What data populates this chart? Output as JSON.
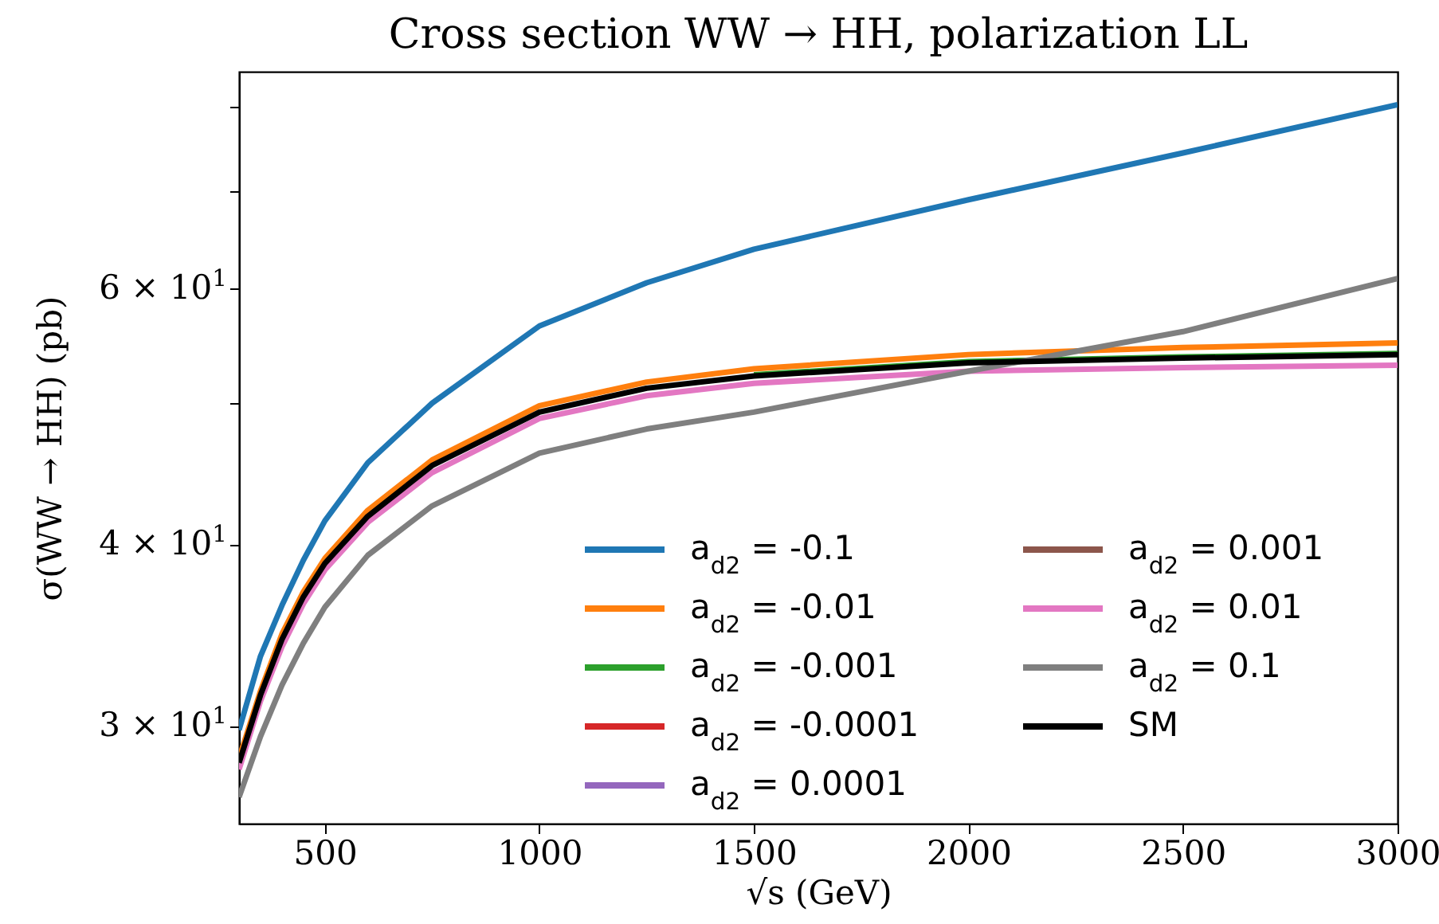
{
  "chart_data": {
    "type": "line",
    "title": "Cross section WW → HH, polarization LL",
    "xlabel": "√s (GeV)",
    "ylabel": "σ(WW → HH) (pb)",
    "x": [
      300,
      350,
      400,
      450,
      500,
      600,
      750,
      1000,
      1250,
      1500,
      2000,
      2500,
      3000
    ],
    "series": [
      {
        "name": "a$_{d2}$ = -0.1",
        "color": "#1f77b4",
        "values": [
          29.8,
          33.5,
          36.3,
          39.0,
          41.5,
          45.5,
          50.0,
          56.5,
          60.5,
          63.8,
          69.0,
          74.3,
          80.2
        ]
      },
      {
        "name": "a$_{d2}$ = -0.01",
        "color": "#ff7f0e",
        "values": [
          28.5,
          31.7,
          34.7,
          37.1,
          39.1,
          42.2,
          45.7,
          49.8,
          51.7,
          52.8,
          54.0,
          54.6,
          55.0
        ]
      },
      {
        "name": "a$_{d2}$ = -0.001",
        "color": "#2ca02c",
        "values": [
          null,
          null,
          null,
          null,
          null,
          null,
          null,
          null,
          null,
          52.3,
          53.4,
          53.8,
          54.1
        ]
      },
      {
        "name": "a$_{d2}$ = -0.0001",
        "color": "#d62728",
        "values": [
          null,
          null,
          null,
          null,
          null,
          null,
          null,
          null,
          null,
          null,
          null,
          null,
          null
        ]
      },
      {
        "name": "a$_{d2}$ = 0.0001",
        "color": "#9467bd",
        "values": [
          null,
          null,
          null,
          null,
          null,
          null,
          null,
          null,
          null,
          null,
          null,
          null,
          null
        ]
      },
      {
        "name": "a$_{d2}$ = 0.001",
        "color": "#8c564b",
        "values": [
          null,
          null,
          null,
          null,
          null,
          null,
          null,
          null,
          null,
          null,
          null,
          null,
          null
        ]
      },
      {
        "name": "a$_{d2}$ = 0.01",
        "color": "#e377c2",
        "values": [
          28.0,
          31.2,
          34.0,
          36.4,
          38.4,
          41.4,
          44.8,
          48.8,
          50.6,
          51.6,
          52.6,
          52.9,
          53.1
        ]
      },
      {
        "name": "a$_{d2}$ = 0.1",
        "color": "#7f7f7f",
        "values": [
          26.8,
          29.5,
          32.0,
          34.2,
          36.2,
          39.3,
          42.5,
          46.2,
          48.0,
          49.3,
          52.6,
          56.0,
          60.9
        ]
      },
      {
        "name": "SM",
        "color": "#000000",
        "values": [
          28.3,
          31.5,
          34.4,
          36.8,
          38.8,
          41.8,
          45.3,
          49.3,
          51.2,
          52.2,
          53.3,
          53.7,
          54.0
        ]
      }
    ],
    "xlim": [
      300,
      3000
    ],
    "xticks": [
      500,
      1000,
      1500,
      2000,
      2500,
      3000
    ],
    "ylim": [
      25.7,
      84.5
    ],
    "yticks": [
      {
        "value": 30,
        "label": "3 × 10$^{1}$"
      },
      {
        "value": 40,
        "label": "4 × 10$^{1}$"
      },
      {
        "value": 50,
        "label": null
      },
      {
        "value": 60,
        "label": "6 × 10$^{1}$"
      },
      {
        "value": 70,
        "label": null
      },
      {
        "value": 80,
        "label": null
      }
    ],
    "log": "y",
    "grid": false,
    "legend": "bottom right",
    "marker": "none",
    "line_style": "solid"
  }
}
